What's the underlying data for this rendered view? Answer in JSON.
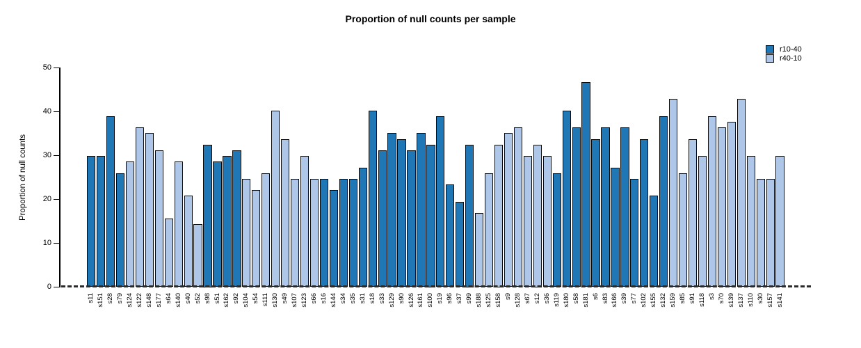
{
  "title": "Proportion of null counts per sample",
  "legend": {
    "items": [
      {
        "label": "r10-40",
        "color": "#2077b5"
      },
      {
        "label": "r40-10",
        "color": "#aec6e8"
      }
    ]
  },
  "chart_data": {
    "type": "bar",
    "title": "Proportion of null counts per sample",
    "xlabel": "",
    "ylabel": "Proportion of null counts",
    "ylim": [
      0,
      50
    ],
    "yticks": [
      0,
      10,
      20,
      30,
      40,
      50
    ],
    "grid": false,
    "legend_position": "top-right",
    "zero_line_style": "dashed",
    "bar_border_color": "#0a0a0a",
    "series_colors": {
      "r10-40": "#2077b5",
      "r40-10": "#aec6e8"
    },
    "categories": [
      "s11",
      "s151",
      "s28",
      "s79",
      "s124",
      "s122",
      "s148",
      "s177",
      "s64",
      "s140",
      "s40",
      "s52",
      "s98",
      "s51",
      "s162",
      "s92",
      "s104",
      "s54",
      "s111",
      "s130",
      "s49",
      "s107",
      "s123",
      "s66",
      "s16",
      "s144",
      "s34",
      "s35",
      "s31",
      "s18",
      "s33",
      "s129",
      "s90",
      "s126",
      "s161",
      "s100",
      "s19",
      "s96",
      "s37",
      "s99",
      "s188",
      "s125",
      "s158",
      "s9",
      "s128",
      "s67",
      "s12",
      "s36",
      "s119",
      "s180",
      "s58",
      "s181",
      "s6",
      "s83",
      "s166",
      "s39",
      "s77",
      "s102",
      "s155",
      "s132",
      "s159",
      "s85",
      "s91",
      "s118",
      "s3",
      "s70",
      "s139",
      "s137",
      "s110",
      "s30",
      "s157",
      "s141"
    ],
    "values": [
      29.9,
      29.9,
      39.0,
      26.0,
      28.6,
      36.4,
      35.1,
      31.2,
      15.6,
      28.6,
      20.8,
      14.3,
      32.5,
      28.6,
      29.9,
      31.2,
      24.7,
      22.1,
      26.0,
      40.3,
      33.8,
      24.7,
      29.9,
      24.7,
      24.7,
      22.1,
      24.7,
      24.7,
      27.3,
      40.3,
      31.2,
      35.1,
      33.8,
      31.2,
      35.1,
      32.5,
      39.0,
      23.4,
      19.5,
      32.5,
      16.9,
      26.0,
      32.5,
      35.1,
      36.4,
      29.9,
      32.5,
      29.9,
      26.0,
      40.3,
      36.4,
      46.8,
      33.8,
      36.4,
      27.3,
      36.4,
      24.7,
      33.8,
      20.8,
      39.0,
      42.9,
      26.0,
      33.8,
      29.9,
      39.0,
      36.4,
      37.7,
      42.9,
      29.9,
      24.7,
      24.7,
      29.9
    ],
    "bar_series": [
      "r10-40",
      "r10-40",
      "r10-40",
      "r10-40",
      "r40-10",
      "r40-10",
      "r40-10",
      "r40-10",
      "r40-10",
      "r40-10",
      "r40-10",
      "r40-10",
      "r10-40",
      "r10-40",
      "r10-40",
      "r10-40",
      "r40-10",
      "r40-10",
      "r40-10",
      "r40-10",
      "r40-10",
      "r40-10",
      "r40-10",
      "r40-10",
      "r10-40",
      "r10-40",
      "r10-40",
      "r10-40",
      "r10-40",
      "r10-40",
      "r10-40",
      "r10-40",
      "r10-40",
      "r10-40",
      "r10-40",
      "r10-40",
      "r10-40",
      "r10-40",
      "r10-40",
      "r10-40",
      "r40-10",
      "r40-10",
      "r40-10",
      "r40-10",
      "r40-10",
      "r40-10",
      "r40-10",
      "r40-10",
      "r10-40",
      "r10-40",
      "r10-40",
      "r10-40",
      "r10-40",
      "r10-40",
      "r10-40",
      "r10-40",
      "r10-40",
      "r10-40",
      "r10-40",
      "r10-40",
      "r40-10",
      "r40-10",
      "r40-10",
      "r40-10",
      "r40-10",
      "r40-10",
      "r40-10",
      "r40-10",
      "r40-10",
      "r40-10",
      "r40-10",
      "r40-10"
    ]
  }
}
